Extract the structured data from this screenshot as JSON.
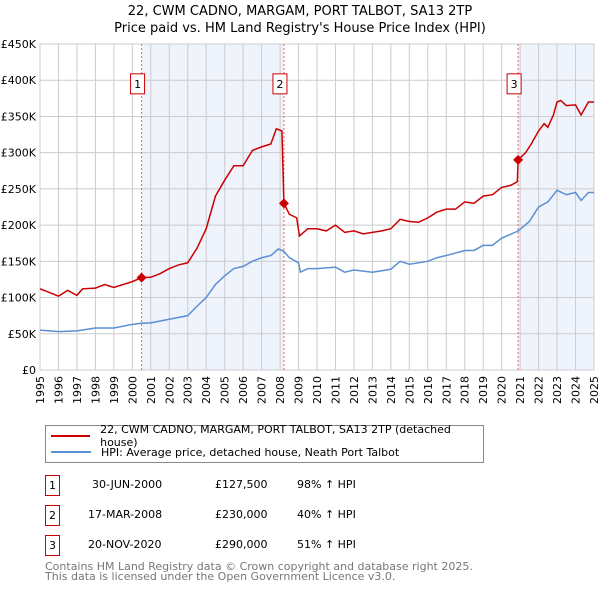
{
  "chart_data": {
    "type": "line",
    "title": "22, CWM CADNO, MARGAM, PORT TALBOT, SA13 2TP",
    "subtitle": "Price paid vs. HM Land Registry's House Price Index (HPI)",
    "xlim": [
      1995,
      2025
    ],
    "ylim": [
      0,
      450000
    ],
    "x_ticks": [
      "1995",
      "1996",
      "1997",
      "1998",
      "1999",
      "2000",
      "2001",
      "2002",
      "2003",
      "2004",
      "2005",
      "2006",
      "2007",
      "2008",
      "2009",
      "2010",
      "2011",
      "2012",
      "2013",
      "2014",
      "2015",
      "2016",
      "2017",
      "2018",
      "2019",
      "2020",
      "2021",
      "2022",
      "2023",
      "2024",
      "2025"
    ],
    "y_ticks": [
      {
        "v": 0,
        "label": "£0"
      },
      {
        "v": 50000,
        "label": "£50K"
      },
      {
        "v": 100000,
        "label": "£100K"
      },
      {
        "v": 150000,
        "label": "£150K"
      },
      {
        "v": 200000,
        "label": "£200K"
      },
      {
        "v": 250000,
        "label": "£250K"
      },
      {
        "v": 300000,
        "label": "£300K"
      },
      {
        "v": 350000,
        "label": "£350K"
      },
      {
        "v": 400000,
        "label": "£400K"
      },
      {
        "v": 450000,
        "label": "£450K"
      }
    ],
    "grid": true,
    "shaded_ranges": [
      [
        2000.5,
        2008.21
      ],
      [
        2020.89,
        2025
      ]
    ],
    "series": [
      {
        "name": "22, CWM CADNO, MARGAM, PORT TALBOT, SA13 2TP (detached house)",
        "color": "#cc0000",
        "x": [
          1995,
          1995.5,
          1996,
          1996.5,
          1997,
          1997.3,
          1998,
          1998.5,
          1999,
          1999.5,
          2000,
          2000.5,
          2001,
          2001.5,
          2002,
          2002.5,
          2003,
          2003.5,
          2004,
          2004.5,
          2005,
          2005.5,
          2006,
          2006.5,
          2007,
          2007.5,
          2007.8,
          2008.1,
          2008.21,
          2008.5,
          2008.9,
          2009.05,
          2009.5,
          2010,
          2010.5,
          2011,
          2011.5,
          2012,
          2012.5,
          2013,
          2013.5,
          2014,
          2014.5,
          2015,
          2015.5,
          2016,
          2016.5,
          2017,
          2017.5,
          2018,
          2018.5,
          2019,
          2019.5,
          2020,
          2020.5,
          2020.85,
          2020.89,
          2021.3,
          2021.6,
          2022,
          2022.3,
          2022.5,
          2022.8,
          2023,
          2023.2,
          2023.5,
          2024,
          2024.3,
          2024.7,
          2025
        ],
        "y": [
          112000,
          107000,
          102000,
          110000,
          103000,
          112000,
          113000,
          118000,
          114000,
          118000,
          122000,
          127500,
          128000,
          133000,
          140000,
          145000,
          148000,
          168000,
          195000,
          240000,
          262000,
          282000,
          282000,
          303000,
          308000,
          312000,
          333000,
          330000,
          230000,
          215000,
          210000,
          185000,
          195000,
          195000,
          192000,
          200000,
          190000,
          192000,
          188000,
          190000,
          192000,
          195000,
          208000,
          205000,
          204000,
          210000,
          218000,
          222000,
          222000,
          232000,
          230000,
          240000,
          242000,
          252000,
          255000,
          260000,
          290000,
          300000,
          312000,
          330000,
          340000,
          335000,
          352000,
          370000,
          372000,
          365000,
          366000,
          352000,
          370000,
          370000
        ]
      },
      {
        "name": "HPI: Average price, detached house, Neath Port Talbot",
        "color": "#5b8fd4",
        "x": [
          1995,
          1996,
          1997,
          1998,
          1999,
          2000,
          2000.5,
          2001,
          2002,
          2003,
          2003.5,
          2004,
          2004.5,
          2005,
          2005.5,
          2006,
          2006.5,
          2007,
          2007.5,
          2007.9,
          2008.2,
          2008.5,
          2009,
          2009.1,
          2009.5,
          2010,
          2011,
          2011.5,
          2012,
          2013,
          2014,
          2014.5,
          2015,
          2016,
          2016.5,
          2017,
          2018,
          2018.5,
          2019,
          2019.5,
          2020,
          2020.9,
          2021.5,
          2022,
          2022.5,
          2023,
          2023.5,
          2024,
          2024.3,
          2024.7,
          2025
        ],
        "y": [
          55000,
          53000,
          54000,
          58000,
          58000,
          63000,
          64500,
          65000,
          70000,
          75000,
          88000,
          100000,
          118000,
          130000,
          140000,
          143000,
          150000,
          155000,
          158000,
          167000,
          164000,
          155000,
          148000,
          135000,
          140000,
          140000,
          142000,
          135000,
          138000,
          135000,
          139000,
          150000,
          146000,
          150000,
          155000,
          158000,
          165000,
          165000,
          172000,
          172000,
          182000,
          192000,
          205000,
          225000,
          232000,
          248000,
          242000,
          245000,
          234000,
          245000,
          245000
        ]
      }
    ],
    "sales": [
      {
        "id": "1",
        "x": 2000.5,
        "price": 127500,
        "date": "30-JUN-2000",
        "price_label": "£127,500",
        "hpi": "98% ↑ HPI"
      },
      {
        "id": "2",
        "x": 2008.21,
        "price": 230000,
        "date": "17-MAR-2008",
        "price_label": "£230,000",
        "hpi": "40% ↑ HPI"
      },
      {
        "id": "3",
        "x": 2020.89,
        "price": 290000,
        "date": "20-NOV-2020",
        "price_label": "£290,000",
        "hpi": "51% ↑ HPI"
      }
    ],
    "marker_label_value": 395000
  },
  "footer": [
    "Contains HM Land Registry data © Crown copyright and database right 2025.",
    "This data is licensed under the Open Government Licence v3.0."
  ]
}
